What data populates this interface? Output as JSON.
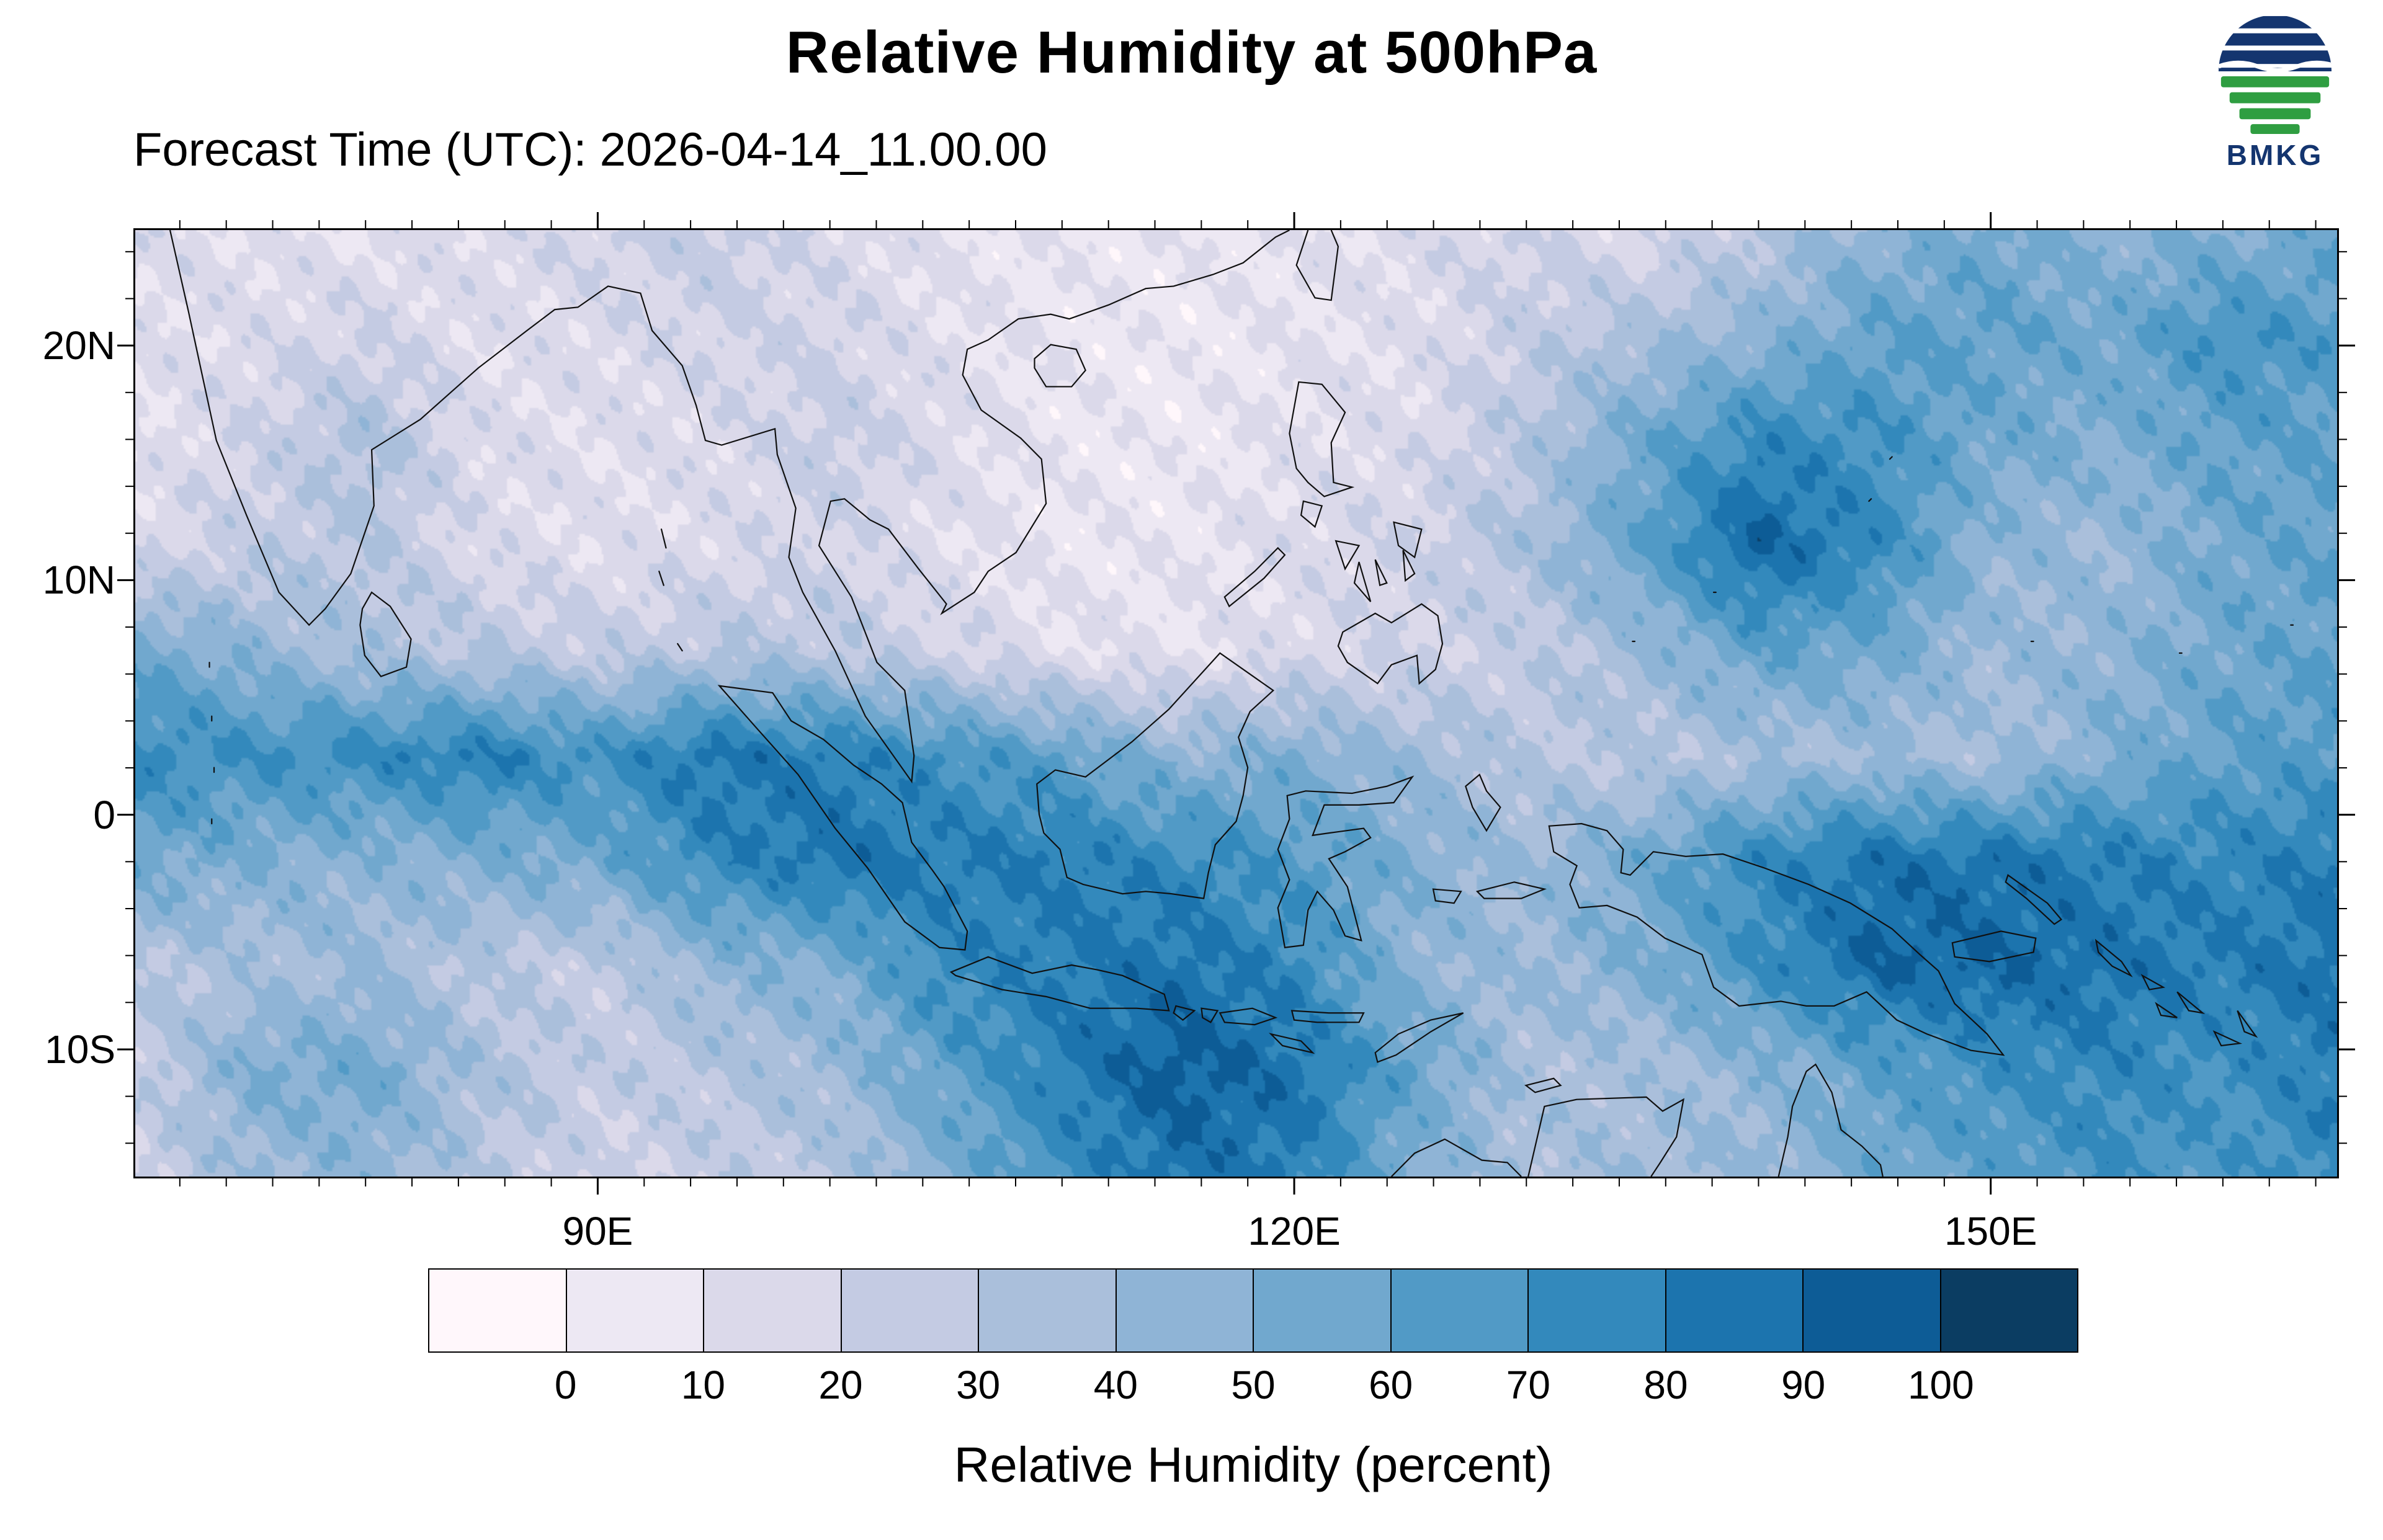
{
  "title": "Relative Humidity at 500hPa",
  "subtitle": "Forecast Time (UTC): 2026-04-14_11.00.00",
  "logo": {
    "label": "BMKG",
    "blue": "#14356f",
    "green": "#2f9e41"
  },
  "map": {
    "extent": {
      "lon_min": 70,
      "lon_max": 165,
      "lat_min": -15.5,
      "lat_max": 25
    },
    "lat_labels": [
      {
        "label": "20N",
        "lat": 20
      },
      {
        "label": "10N",
        "lat": 10
      },
      {
        "label": "0",
        "lat": 0
      },
      {
        "label": "10S",
        "lat": -10
      }
    ],
    "lon_labels": [
      {
        "label": "90E",
        "lon": 90
      },
      {
        "label": "120E",
        "lon": 120
      },
      {
        "label": "150E",
        "lon": 150
      }
    ]
  },
  "colorbar": {
    "label": "Relative Humidity (percent)",
    "tick_labels": [
      "0",
      "10",
      "20",
      "30",
      "40",
      "50",
      "60",
      "70",
      "80",
      "90",
      "100"
    ],
    "colors": [
      "#fff7fb",
      "#ede8f3",
      "#dbd9ea",
      "#c4cbe3",
      "#aabfdb",
      "#8fb4d6",
      "#71a8ce",
      "#519ac6",
      "#3389bc",
      "#1c74ae",
      "#0d5c96",
      "#0b3d62"
    ]
  },
  "chart_data": {
    "type": "heatmap",
    "title": "Relative Humidity at 500hPa",
    "units": "percent",
    "levels": [
      0,
      10,
      20,
      30,
      40,
      50,
      60,
      70,
      80,
      90,
      100
    ],
    "lon": [
      70,
      75,
      80,
      85,
      90,
      95,
      100,
      105,
      110,
      115,
      120,
      125,
      130,
      135,
      140,
      145,
      150,
      155,
      160,
      165
    ],
    "lat": [
      25,
      20.5,
      16,
      11.5,
      7,
      2.5,
      -2,
      -6.5,
      -11,
      -15.5
    ],
    "values": [
      [
        15,
        12,
        10,
        15,
        20,
        25,
        15,
        10,
        8,
        8,
        10,
        15,
        20,
        15,
        30,
        45,
        55,
        45,
        50,
        55
      ],
      [
        12,
        15,
        20,
        12,
        15,
        20,
        20,
        12,
        8,
        6,
        10,
        12,
        25,
        35,
        45,
        60,
        60,
        55,
        70,
        65
      ],
      [
        10,
        20,
        35,
        15,
        12,
        15,
        25,
        15,
        8,
        6,
        12,
        15,
        30,
        55,
        75,
        70,
        55,
        50,
        60,
        60
      ],
      [
        15,
        25,
        30,
        15,
        12,
        15,
        20,
        12,
        8,
        8,
        15,
        20,
        35,
        60,
        92,
        75,
        45,
        40,
        55,
        60
      ],
      [
        55,
        45,
        35,
        30,
        25,
        30,
        30,
        20,
        12,
        10,
        15,
        20,
        25,
        40,
        60,
        55,
        40,
        45,
        55,
        60
      ],
      [
        75,
        70,
        75,
        80,
        70,
        85,
        80,
        70,
        60,
        45,
        50,
        40,
        30,
        30,
        35,
        40,
        35,
        50,
        60,
        65
      ],
      [
        55,
        50,
        45,
        50,
        55,
        75,
        85,
        80,
        80,
        75,
        65,
        50,
        40,
        55,
        75,
        85,
        85,
        80,
        75,
        80
      ],
      [
        30,
        35,
        40,
        30,
        25,
        45,
        50,
        75,
        80,
        85,
        75,
        45,
        40,
        50,
        70,
        90,
        90,
        85,
        80,
        85
      ],
      [
        25,
        50,
        55,
        35,
        25,
        30,
        40,
        60,
        80,
        95,
        85,
        60,
        35,
        35,
        45,
        60,
        70,
        75,
        70,
        80
      ],
      [
        20,
        40,
        45,
        30,
        20,
        25,
        30,
        50,
        70,
        85,
        80,
        50,
        35,
        40,
        40,
        55,
        60,
        70,
        65,
        75
      ]
    ]
  }
}
